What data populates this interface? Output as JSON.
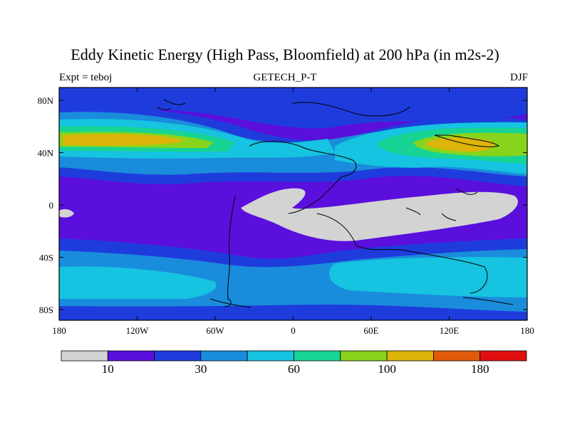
{
  "title": "Eddy Kinetic Energy (High Pass, Bloomfield) at 200 hPa (in m2s-2)",
  "subtitle_left": "Expt = teboj",
  "subtitle_center": "GETECH_P-T",
  "subtitle_right": "DJF",
  "lat_ticks": [
    "80N",
    "40N",
    "0",
    "40S",
    "80S"
  ],
  "lon_ticks": [
    "180",
    "120W",
    "60W",
    "0",
    "60E",
    "120E",
    "180"
  ],
  "colorbar": {
    "colors": [
      "#d3d3d3",
      "#5a0fdc",
      "#1e3cdc",
      "#1a8cdc",
      "#16c3e0",
      "#17d494",
      "#88d41c",
      "#dcb40a",
      "#e05a0a",
      "#e01010"
    ],
    "labels": [
      "10",
      "30",
      "60",
      "100",
      "180"
    ]
  }
}
